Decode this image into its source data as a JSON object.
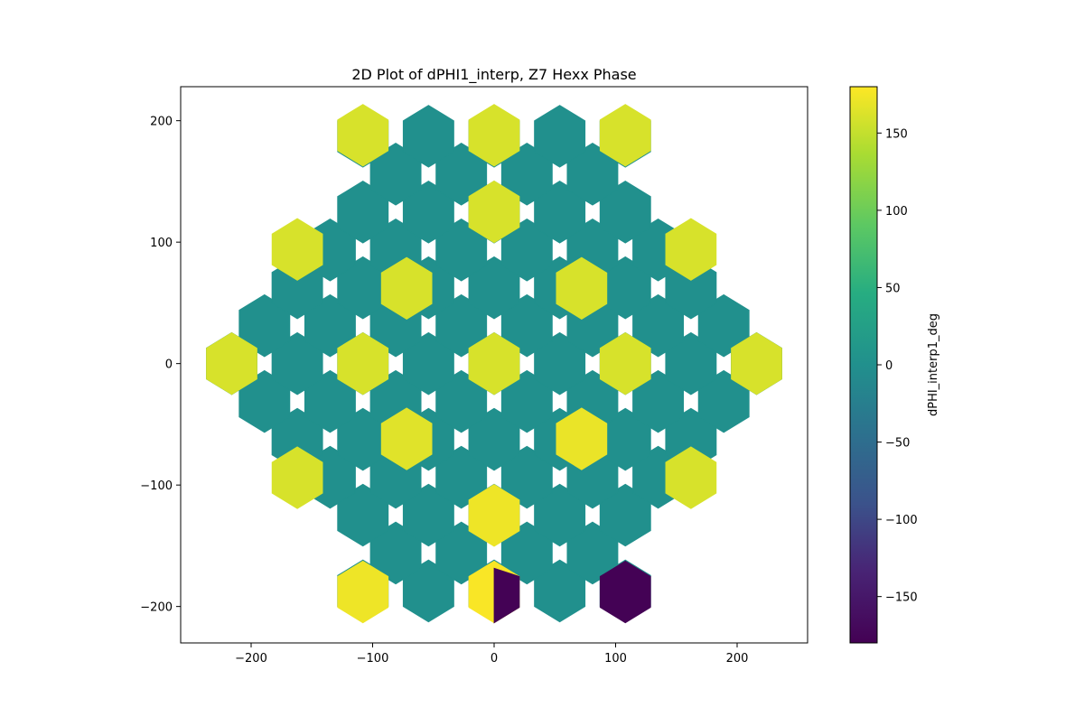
{
  "chart_data": {
    "type": "heatmap",
    "title": "2D Plot of dPHI1_interp, Z7 Hexx Phase",
    "xlabel": "",
    "ylabel": "",
    "xlim": [
      -258,
      258
    ],
    "ylim": [
      -230,
      228
    ],
    "x_ticks": [
      -200,
      -100,
      0,
      100,
      200
    ],
    "y_ticks": [
      -200,
      -100,
      0,
      100,
      200
    ],
    "x_tick_labels": [
      "−200",
      "−100",
      "0",
      "100",
      "200"
    ],
    "y_tick_labels": [
      "−200",
      "−100",
      "0",
      "100",
      "200"
    ],
    "grid": false,
    "colorbar": {
      "label": "dPHI_interp1_deg",
      "range": [
        -180,
        180
      ],
      "ticks": [
        150,
        100,
        50,
        0,
        -50,
        -100,
        -150
      ],
      "tick_labels": [
        "150",
        "100",
        "50",
        "0",
        "−50",
        "−100",
        "−150"
      ],
      "colormap": "viridis"
    },
    "hex_radius": 24,
    "background_value": 0,
    "background_color": "#21908d",
    "cells": [
      {
        "x": -108,
        "y": 188,
        "value": 160
      },
      {
        "x": 0,
        "y": 188,
        "value": 160
      },
      {
        "x": 108,
        "y": 188,
        "value": 160
      },
      {
        "x": 0,
        "y": 125,
        "value": 160
      },
      {
        "x": -162,
        "y": 94,
        "value": 160
      },
      {
        "x": 162,
        "y": 94,
        "value": 160
      },
      {
        "x": -72,
        "y": 62,
        "value": 160
      },
      {
        "x": 72,
        "y": 62,
        "value": 160
      },
      {
        "x": -216,
        "y": 0,
        "value": 160
      },
      {
        "x": -108,
        "y": 0,
        "value": 160
      },
      {
        "x": 0,
        "y": 0,
        "value": 160
      },
      {
        "x": 108,
        "y": 0,
        "value": 160
      },
      {
        "x": 216,
        "y": 0,
        "value": 160
      },
      {
        "x": -72,
        "y": -62,
        "value": 165
      },
      {
        "x": 72,
        "y": -62,
        "value": 170
      },
      {
        "x": -162,
        "y": -94,
        "value": 160
      },
      {
        "x": 162,
        "y": -94,
        "value": 160
      },
      {
        "x": 0,
        "y": -125,
        "value": 172
      },
      {
        "x": -108,
        "y": -188,
        "value": 172
      },
      {
        "x": 108,
        "y": -188,
        "value": -178
      },
      {
        "x": 0,
        "y": -188,
        "value": 178,
        "split_value": -178
      }
    ]
  }
}
